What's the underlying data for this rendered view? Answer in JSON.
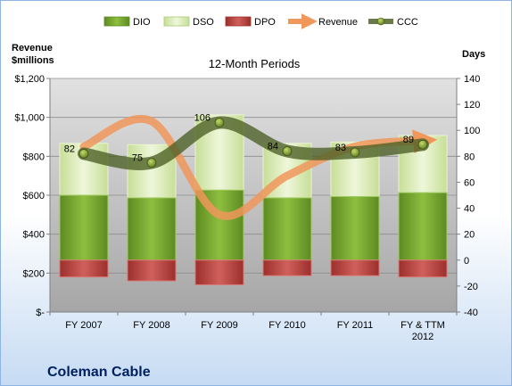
{
  "chart_data": {
    "type": "bar",
    "title": "12-Month Periods",
    "company": "Coleman Cable",
    "left_axis_label": [
      "Revenue",
      "$millions"
    ],
    "right_axis_label": "Days",
    "categories": [
      [
        "FY 2007"
      ],
      [
        "FY 2008"
      ],
      [
        "FY 2009"
      ],
      [
        "FY 2010"
      ],
      [
        "FY 2011"
      ],
      [
        "FY & TTM",
        "2012"
      ]
    ],
    "left_ticks": [
      "$-",
      "$200",
      "$400",
      "$600",
      "$800",
      "$1,000",
      "$1,200"
    ],
    "left_ylim": [
      0,
      1200
    ],
    "right_ticks": [
      "-40",
      "-20",
      "0",
      "20",
      "40",
      "60",
      "80",
      "100",
      "120",
      "140"
    ],
    "right_ylim": [
      -40,
      140
    ],
    "grid": true,
    "legend_position": "top",
    "legend": [
      "DIO",
      "DSO",
      "DPO",
      "Revenue",
      "CCC"
    ],
    "series": [
      {
        "name": "DIO",
        "axis": "right",
        "type": "stacked-bar",
        "values": [
          50,
          48,
          54,
          48,
          49,
          52
        ],
        "color": "#77a933"
      },
      {
        "name": "DSO",
        "axis": "right",
        "type": "stacked-bar",
        "values": [
          40,
          41,
          58,
          42,
          42,
          44
        ],
        "color": "#d8ebb3"
      },
      {
        "name": "DPO",
        "axis": "right",
        "type": "negative-bar",
        "values": [
          -13,
          -16,
          -19,
          -12,
          -12,
          -13
        ],
        "color": "#c0504d"
      },
      {
        "name": "Revenue",
        "axis": "left",
        "type": "line",
        "values": [
          850,
          980,
          500,
          700,
          850,
          880
        ],
        "color": "#f79646"
      },
      {
        "name": "CCC",
        "axis": "right",
        "type": "line",
        "values": [
          82,
          75,
          106,
          84,
          83,
          89
        ],
        "labels": [
          "82",
          "75",
          "106",
          "84",
          "83",
          "89"
        ],
        "color": "#4f6228"
      }
    ]
  }
}
